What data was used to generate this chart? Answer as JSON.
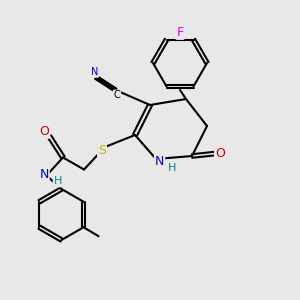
{
  "bg_color": "#e8e8e8",
  "bond_color": "#000000",
  "bond_width": 1.5,
  "atom_colors": {
    "F": "#ee00ee",
    "N": "#0000cc",
    "O": "#cc0000",
    "S": "#bbbb00",
    "C_label": "#000000",
    "H": "#008888"
  },
  "font_size": 8,
  "fig_size": [
    3.0,
    3.0
  ],
  "dpi": 100
}
